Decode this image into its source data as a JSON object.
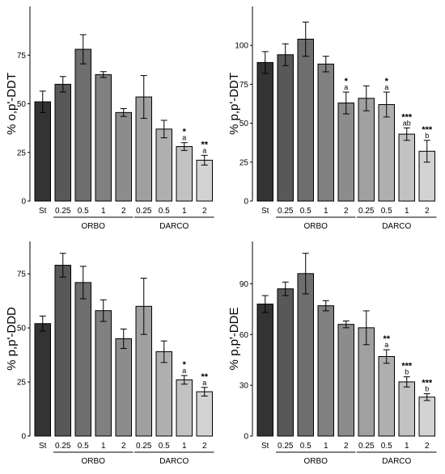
{
  "chart_data": [
    {
      "type": "bar",
      "ylabel": "% o,p'-DDT",
      "ylim": [
        0,
        100
      ],
      "yticks": [
        0,
        25,
        50,
        75
      ],
      "categories": [
        "St",
        "0.25",
        "0.5",
        "1",
        "2",
        "0.25",
        "0.5",
        "1",
        "2"
      ],
      "values": [
        51,
        60,
        78,
        65,
        45.5,
        53.5,
        37,
        28,
        21
      ],
      "errors": [
        5.5,
        4,
        7.5,
        1.5,
        2,
        11,
        4.5,
        2,
        2.5
      ],
      "colors": [
        "#333333",
        "#585858",
        "#6e6e6e",
        "#808080",
        "#8c8c8c",
        "#a0a0a0",
        "#afafaf",
        "#c2c2c2",
        "#d3d3d3"
      ],
      "letters": [
        "",
        "",
        "",
        "",
        "",
        "",
        "",
        "a",
        "a"
      ],
      "significance": [
        "",
        "",
        "",
        "",
        "",
        "",
        "",
        "*",
        "**"
      ],
      "groups": [
        {
          "label": "ORBO",
          "from": 1,
          "to": 4
        },
        {
          "label": "DARCO",
          "from": 5,
          "to": 8
        }
      ]
    },
    {
      "type": "bar",
      "ylabel": "% p,p'-DDT",
      "ylim": [
        0,
        125
      ],
      "yticks": [
        0,
        25,
        50,
        75,
        100
      ],
      "categories": [
        "St",
        "0.25",
        "0.5",
        "1",
        "2",
        "0.25",
        "0.5",
        "1",
        "2"
      ],
      "values": [
        89,
        94,
        104,
        88,
        63,
        66,
        62,
        43,
        32
      ],
      "errors": [
        7,
        7,
        11,
        5,
        7,
        8,
        8,
        4,
        7
      ],
      "colors": [
        "#333333",
        "#585858",
        "#6e6e6e",
        "#808080",
        "#8c8c8c",
        "#a0a0a0",
        "#afafaf",
        "#c2c2c2",
        "#d3d3d3"
      ],
      "letters": [
        "",
        "",
        "",
        "",
        "a",
        "",
        "a",
        "ab",
        "b"
      ],
      "significance": [
        "",
        "",
        "",
        "",
        "*",
        "",
        "*",
        "***",
        "***"
      ],
      "groups": [
        {
          "label": "ORBO",
          "from": 1,
          "to": 4
        },
        {
          "label": "DARCO",
          "from": 5,
          "to": 8
        }
      ]
    },
    {
      "type": "bar",
      "ylabel": "% p,p'-DDD",
      "ylim": [
        0,
        90
      ],
      "yticks": [
        0,
        25,
        50,
        75
      ],
      "categories": [
        "St",
        "0.25",
        "0.5",
        "1",
        "2",
        "0.25",
        "0.5",
        "1",
        "2"
      ],
      "values": [
        52,
        79,
        71,
        58,
        45,
        60,
        39,
        26,
        20.5
      ],
      "errors": [
        3.5,
        5.5,
        7.5,
        5,
        4.5,
        13,
        5,
        2,
        2
      ],
      "colors": [
        "#333333",
        "#585858",
        "#6e6e6e",
        "#808080",
        "#8c8c8c",
        "#a0a0a0",
        "#afafaf",
        "#c2c2c2",
        "#d3d3d3"
      ],
      "letters": [
        "",
        "",
        "",
        "",
        "",
        "",
        "",
        "a",
        "a"
      ],
      "significance": [
        "",
        "",
        "",
        "",
        "",
        "",
        "",
        "*",
        "**"
      ],
      "groups": [
        {
          "label": "ORBO",
          "from": 1,
          "to": 4
        },
        {
          "label": "DARCO",
          "from": 5,
          "to": 8
        }
      ]
    },
    {
      "type": "bar",
      "ylabel": "% p,p'-DDE",
      "ylim": [
        0,
        115
      ],
      "yticks": [
        0,
        30,
        60,
        90
      ],
      "categories": [
        "St",
        "0.25",
        "0.5",
        "1",
        "2",
        "0.25",
        "0.5",
        "1",
        "2"
      ],
      "values": [
        78,
        87,
        96,
        77,
        66,
        64,
        47,
        32,
        23
      ],
      "errors": [
        5,
        4,
        12,
        3,
        2,
        10,
        4,
        3,
        2
      ],
      "colors": [
        "#333333",
        "#585858",
        "#6e6e6e",
        "#808080",
        "#8c8c8c",
        "#a0a0a0",
        "#afafaf",
        "#c2c2c2",
        "#d3d3d3"
      ],
      "letters": [
        "",
        "",
        "",
        "",
        "",
        "",
        "a",
        "b",
        "b"
      ],
      "significance": [
        "",
        "",
        "",
        "",
        "",
        "",
        "**",
        "***",
        "***"
      ],
      "groups": [
        {
          "label": "ORBO",
          "from": 1,
          "to": 4
        },
        {
          "label": "DARCO",
          "from": 5,
          "to": 8
        }
      ]
    }
  ]
}
